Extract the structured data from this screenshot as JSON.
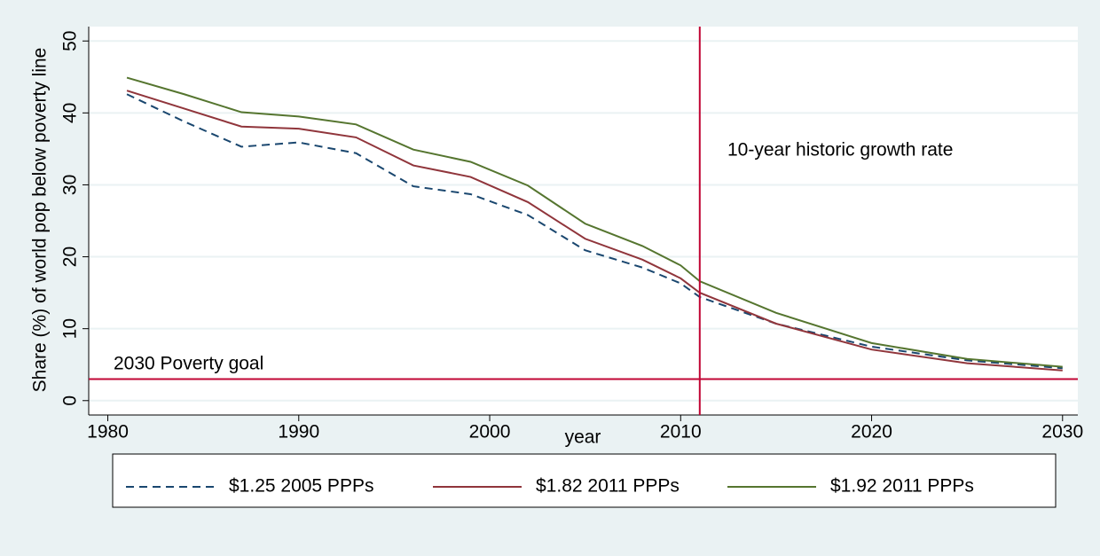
{
  "chart_data": {
    "type": "line",
    "x_label": "year",
    "y_label": "Share (%) of world pop below poverty line",
    "x": [
      1981,
      1984,
      1987,
      1990,
      1993,
      1996,
      1999,
      2002,
      2005,
      2008,
      2010,
      2011,
      2015,
      2020,
      2025,
      2030
    ],
    "series": [
      {
        "name": "$1.25 2005 PPPs",
        "color": "#1a476f",
        "dash": true,
        "values": [
          42.6,
          38.8,
          35.3,
          35.9,
          34.4,
          29.8,
          28.7,
          25.8,
          20.9,
          18.5,
          16.3,
          14.4,
          10.7,
          7.5,
          5.6,
          4.5
        ]
      },
      {
        "name": "$1.82  2011 PPPs",
        "color": "#90353b",
        "dash": false,
        "values": [
          43.1,
          40.6,
          38.1,
          37.8,
          36.6,
          32.7,
          31.1,
          27.6,
          22.5,
          19.6,
          17.0,
          15.0,
          10.7,
          7.1,
          5.2,
          4.2
        ]
      },
      {
        "name": "$1.92  2011 PPPs",
        "color": "#55752f",
        "dash": false,
        "values": [
          44.9,
          42.6,
          40.1,
          39.5,
          38.4,
          34.9,
          33.2,
          29.9,
          24.6,
          21.5,
          18.8,
          16.6,
          12.2,
          8.0,
          5.8,
          4.7
        ]
      }
    ],
    "xlim": [
      1979,
      2030.8
    ],
    "xticks": [
      1980,
      1990,
      2000,
      2010,
      2020,
      2030
    ],
    "ylim": [
      -2,
      52
    ],
    "yticks": [
      0,
      10,
      20,
      30,
      40,
      50
    ],
    "grid": true,
    "reference_color": "#c10534",
    "hline": 3,
    "hline_label": "2030 Poverty goal",
    "vline": 2011,
    "vline_label": "10-year historic growth rate"
  }
}
